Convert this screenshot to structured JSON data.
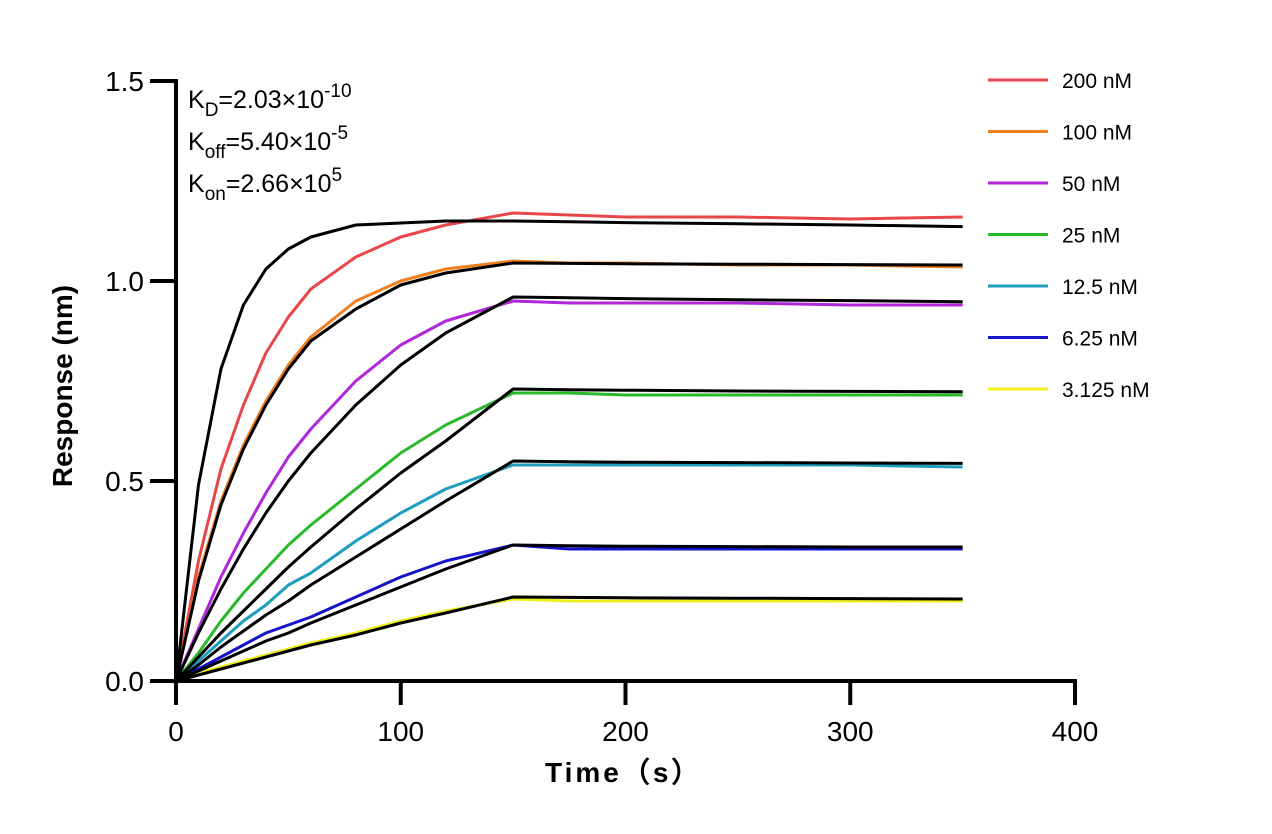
{
  "chart_data": {
    "type": "line",
    "xlabel": "Time（s）",
    "ylabel": "Response (nm)",
    "annotations": [
      {
        "symbol": "K",
        "subscript": "D",
        "text": "=2.03×10",
        "superscript": "-10"
      },
      {
        "symbol": "K",
        "subscript": "off",
        "text": "=5.40×10",
        "superscript": "-5"
      },
      {
        "symbol": "K",
        "subscript": "on",
        "text": "=2.66×10",
        "superscript": "5"
      }
    ],
    "x": [
      0,
      10,
      20,
      30,
      40,
      50,
      60,
      80,
      100,
      120,
      150,
      175,
      200,
      250,
      300,
      350
    ],
    "xlim": [
      0,
      400
    ],
    "xticks": [
      0,
      100,
      200,
      300,
      400
    ],
    "ylim": [
      0,
      1.5
    ],
    "yticks": [
      {
        "value": 0,
        "label": "0.0"
      },
      {
        "value": 0.5,
        "label": "0.5"
      },
      {
        "value": 1,
        "label": "1.0"
      },
      {
        "value": 1.5,
        "label": "1.5"
      }
    ],
    "legend": "top-right",
    "series": [
      {
        "name": "200 nM",
        "color": "#e8474a",
        "values": [
          0,
          0.3,
          0.53,
          0.69,
          0.82,
          0.91,
          0.98,
          1.06,
          1.11,
          1.14,
          1.17,
          1.165,
          1.16,
          1.16,
          1.155,
          1.16
        ]
      },
      {
        "name": "100 nM",
        "color": "#f0801e",
        "values": [
          0,
          0.26,
          0.45,
          0.59,
          0.7,
          0.79,
          0.86,
          0.95,
          1.0,
          1.03,
          1.05,
          1.045,
          1.045,
          1.04,
          1.04,
          1.035
        ]
      },
      {
        "name": "50 nM",
        "color": "#b026d9",
        "values": [
          0,
          0.13,
          0.26,
          0.37,
          0.47,
          0.56,
          0.63,
          0.75,
          0.84,
          0.9,
          0.95,
          0.945,
          0.945,
          0.945,
          0.94,
          0.94
        ]
      },
      {
        "name": "25 nM",
        "color": "#2ab92a",
        "values": [
          0,
          0.07,
          0.15,
          0.22,
          0.28,
          0.34,
          0.39,
          0.48,
          0.57,
          0.64,
          0.72,
          0.72,
          0.715,
          0.715,
          0.715,
          0.715
        ]
      },
      {
        "name": "12.5 nM",
        "color": "#1e9dbe",
        "values": [
          0,
          0.05,
          0.1,
          0.15,
          0.19,
          0.24,
          0.27,
          0.35,
          0.42,
          0.48,
          0.54,
          0.54,
          0.54,
          0.54,
          0.54,
          0.535
        ]
      },
      {
        "name": "6.25 nM",
        "color": "#1414c8",
        "values": [
          0,
          0.03,
          0.06,
          0.09,
          0.12,
          0.14,
          0.16,
          0.21,
          0.26,
          0.3,
          0.34,
          0.33,
          0.33,
          0.33,
          0.33,
          0.33
        ]
      },
      {
        "name": "3.125 nM",
        "color": "#f0f01e",
        "values": [
          0,
          0.02,
          0.035,
          0.05,
          0.065,
          0.08,
          0.095,
          0.12,
          0.15,
          0.175,
          0.205,
          0.2,
          0.2,
          0.2,
          0.2,
          0.2
        ]
      }
    ],
    "fit_series": [
      {
        "color": "#000000",
        "values": [
          0,
          0.49,
          0.78,
          0.94,
          1.03,
          1.08,
          1.11,
          1.14,
          1.145,
          1.15,
          1.15,
          1.148,
          1.146,
          1.143,
          1.14,
          1.136
        ]
      },
      {
        "color": "#000000",
        "values": [
          0,
          0.25,
          0.44,
          0.58,
          0.69,
          0.78,
          0.85,
          0.93,
          0.99,
          1.02,
          1.045,
          1.044,
          1.043,
          1.042,
          1.041,
          1.04
        ]
      },
      {
        "color": "#000000",
        "values": [
          0,
          0.12,
          0.23,
          0.33,
          0.42,
          0.5,
          0.57,
          0.69,
          0.79,
          0.87,
          0.96,
          0.958,
          0.956,
          0.953,
          0.951,
          0.948
        ]
      },
      {
        "color": "#000000",
        "values": [
          0,
          0.06,
          0.12,
          0.175,
          0.23,
          0.285,
          0.335,
          0.43,
          0.52,
          0.6,
          0.73,
          0.728,
          0.727,
          0.725,
          0.724,
          0.723
        ]
      },
      {
        "color": "#000000",
        "values": [
          0,
          0.04,
          0.085,
          0.125,
          0.165,
          0.2,
          0.24,
          0.31,
          0.38,
          0.45,
          0.55,
          0.548,
          0.547,
          0.546,
          0.545,
          0.544
        ]
      },
      {
        "color": "#000000",
        "values": [
          0,
          0.025,
          0.05,
          0.075,
          0.1,
          0.12,
          0.145,
          0.19,
          0.235,
          0.28,
          0.34,
          0.338,
          0.337,
          0.336,
          0.335,
          0.335
        ]
      },
      {
        "color": "#000000",
        "values": [
          0,
          0.015,
          0.03,
          0.045,
          0.06,
          0.075,
          0.09,
          0.115,
          0.145,
          0.17,
          0.21,
          0.209,
          0.208,
          0.207,
          0.206,
          0.205
        ]
      }
    ]
  }
}
